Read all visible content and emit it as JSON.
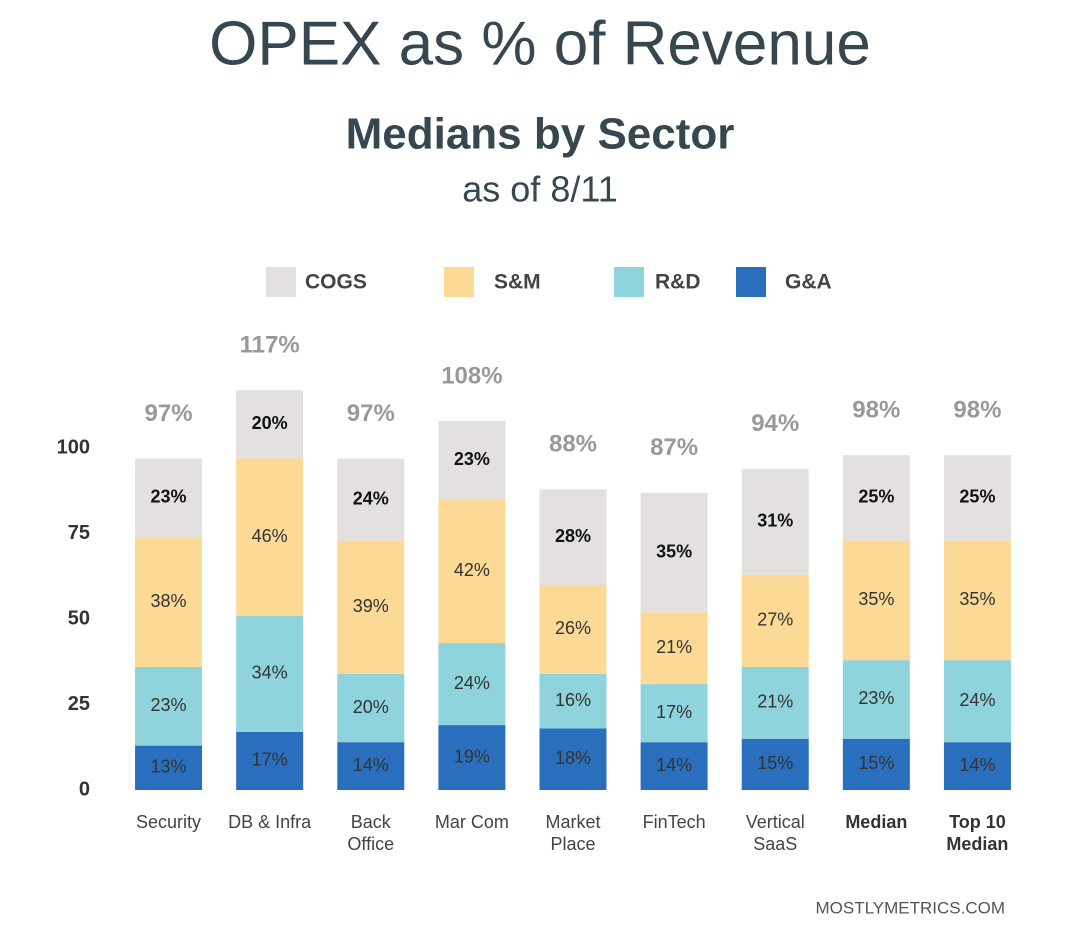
{
  "chart_data": {
    "type": "stacked_bar",
    "title": "OPEX as % of Revenue",
    "subtitle": "Medians by Sector",
    "date_note": "as of 8/11",
    "source": "MOSTLYMETRICS.COM",
    "categories": [
      "Security",
      "DB & Infra",
      "Back Office",
      "Mar Com",
      "Market Place",
      "FinTech",
      "Vertical SaaS",
      "Median",
      "Top 10 Median"
    ],
    "series": [
      {
        "name": "COGS",
        "color": "#e4e0df",
        "values": [
          23,
          20,
          24,
          23,
          28,
          35,
          31,
          25,
          25
        ],
        "value_labels": [
          "23%",
          "20%",
          "24%",
          "23%",
          "28%",
          "35%",
          "31%",
          "25%",
          "25%"
        ]
      },
      {
        "name": "S&M",
        "color": "#fcd995",
        "values": [
          38,
          46,
          39,
          42,
          26,
          21,
          27,
          35,
          35
        ],
        "value_labels": [
          "38%",
          "46%",
          "39%",
          "42%",
          "26%",
          "21%",
          "27%",
          "35%",
          "35%"
        ]
      },
      {
        "name": "R&D",
        "color": "#8fd3dd",
        "values": [
          23,
          34,
          20,
          24,
          16,
          17,
          21,
          23,
          24
        ],
        "value_labels": [
          "23%",
          "34%",
          "20%",
          "24%",
          "16%",
          "17%",
          "21%",
          "23%",
          "24%"
        ]
      },
      {
        "name": "G&A",
        "color": "#2a6fbd",
        "values": [
          13,
          17,
          14,
          19,
          18,
          14,
          15,
          15,
          14
        ],
        "value_labels": [
          "13%",
          "17%",
          "14%",
          "19%",
          "18%",
          "14%",
          "15%",
          "15%",
          "14%"
        ]
      }
    ],
    "totals": [
      97,
      117,
      97,
      108,
      88,
      87,
      94,
      98,
      98
    ],
    "total_labels": [
      "97%",
      "117%",
      "97%",
      "108%",
      "88%",
      "87%",
      "94%",
      "98%",
      "98%"
    ],
    "ylim": [
      0,
      120
    ],
    "yticks": [
      0,
      25,
      50,
      75,
      100
    ],
    "grid": false,
    "legend": "top"
  }
}
